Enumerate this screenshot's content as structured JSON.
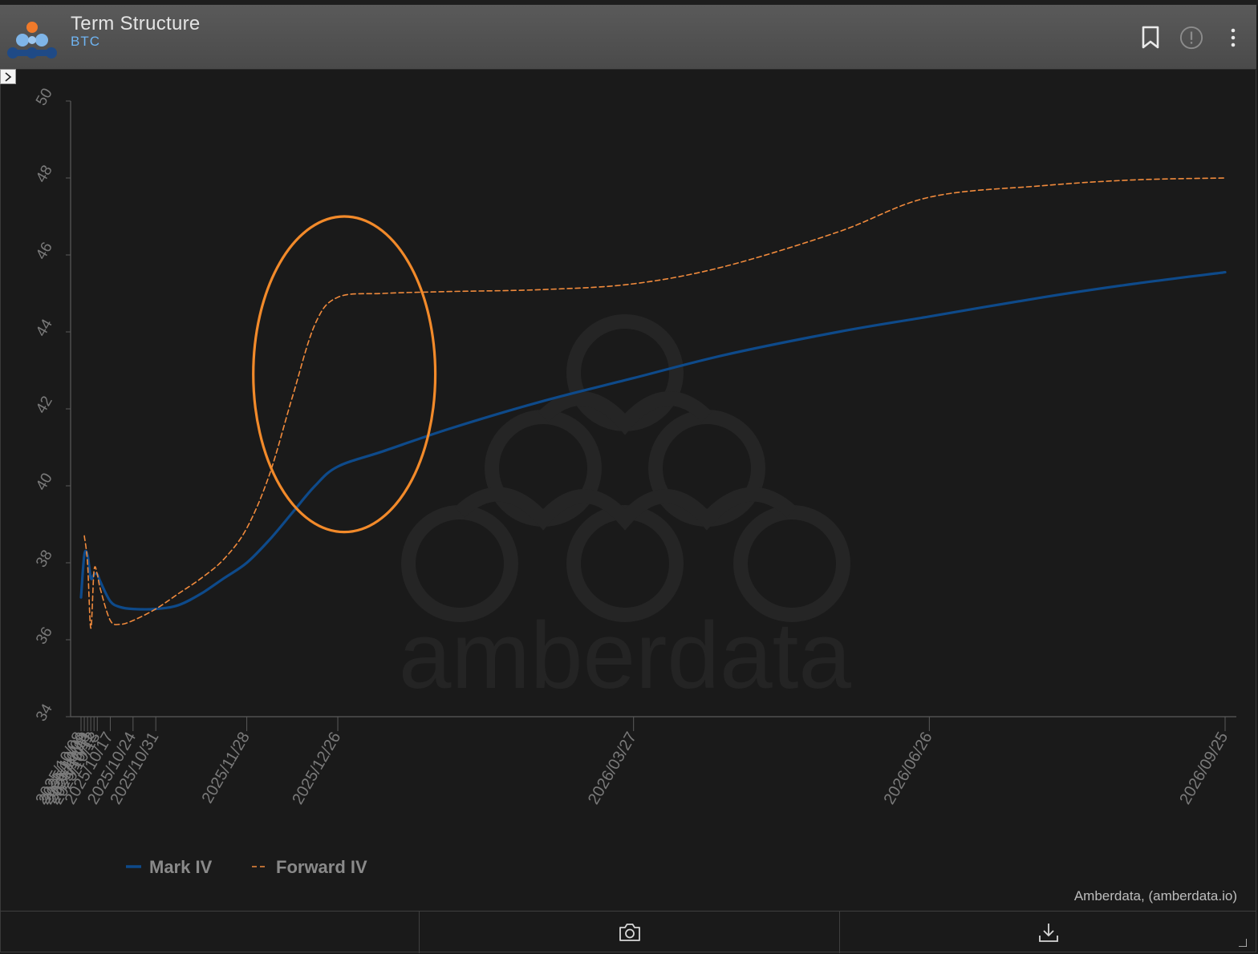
{
  "header": {
    "title": "Term Structure",
    "subtitle": "BTC",
    "icons": [
      "bookmark-icon",
      "info-icon",
      "more-vertical-icon"
    ]
  },
  "watermark": "amberdata",
  "credit": "Amberdata, (amberdata.io)",
  "footer": {
    "icons": [
      "camera-icon",
      "download-icon"
    ]
  },
  "chart_data": {
    "type": "line",
    "title": "",
    "xlabel": "",
    "ylabel": "",
    "ylim": [
      34,
      50
    ],
    "yticks": [
      34,
      36,
      38,
      40,
      42,
      44,
      46,
      48,
      50
    ],
    "xlim": [
      "2025-10-08",
      "2026-09-25"
    ],
    "xticks": [
      "2025/10/17",
      "2025/10/24",
      "2025/10/31",
      "2025/11/28",
      "2025/12/26",
      "2026/03/27",
      "2026/06/26",
      "2026/09/25"
    ],
    "xticks_overlapped": [
      "2025/10/08",
      "2025/10/09",
      "2025/10/10",
      "2025/10/11",
      "2025/10/12",
      "2025/10/13"
    ],
    "grid": false,
    "legend_position": "bottom-left",
    "series": [
      {
        "name": "Mark IV",
        "color": "#0e4a8a",
        "style": "solid",
        "points": [
          [
            "2025-10-08",
            37.1
          ],
          [
            "2025-10-09",
            38.2
          ],
          [
            "2025-10-10",
            38.2
          ],
          [
            "2025-10-11",
            37.6
          ],
          [
            "2025-10-12",
            37.7
          ],
          [
            "2025-10-13",
            37.7
          ],
          [
            "2025-10-14",
            37.5
          ],
          [
            "2025-10-17",
            37.0
          ],
          [
            "2025-10-20",
            36.85
          ],
          [
            "2025-10-24",
            36.8
          ],
          [
            "2025-10-31",
            36.8
          ],
          [
            "2025-11-07",
            36.9
          ],
          [
            "2025-11-14",
            37.2
          ],
          [
            "2025-11-21",
            37.6
          ],
          [
            "2025-11-28",
            38.0
          ],
          [
            "2025-12-05",
            38.6
          ],
          [
            "2025-12-12",
            39.3
          ],
          [
            "2025-12-19",
            40.0
          ],
          [
            "2025-12-26",
            40.5
          ],
          [
            "2026-01-09",
            40.9
          ],
          [
            "2026-01-30",
            41.5
          ],
          [
            "2026-02-27",
            42.2
          ],
          [
            "2026-03-27",
            42.8
          ],
          [
            "2026-04-24",
            43.4
          ],
          [
            "2026-05-29",
            44.0
          ],
          [
            "2026-06-26",
            44.4
          ],
          [
            "2026-07-31",
            44.9
          ],
          [
            "2026-08-28",
            45.25
          ],
          [
            "2026-09-25",
            45.55
          ]
        ]
      },
      {
        "name": "Forward IV",
        "color": "#f08a3c",
        "style": "dashed",
        "points": [
          [
            "2025-10-09",
            38.7
          ],
          [
            "2025-10-10",
            38.0
          ],
          [
            "2025-10-11",
            36.3
          ],
          [
            "2025-10-12",
            37.8
          ],
          [
            "2025-10-13",
            37.7
          ],
          [
            "2025-10-14",
            37.3
          ],
          [
            "2025-10-17",
            36.5
          ],
          [
            "2025-10-20",
            36.4
          ],
          [
            "2025-10-24",
            36.5
          ],
          [
            "2025-10-31",
            36.8
          ],
          [
            "2025-11-07",
            37.2
          ],
          [
            "2025-11-14",
            37.6
          ],
          [
            "2025-11-21",
            38.1
          ],
          [
            "2025-11-28",
            38.9
          ],
          [
            "2025-12-05",
            40.3
          ],
          [
            "2025-12-12",
            42.3
          ],
          [
            "2025-12-19",
            44.2
          ],
          [
            "2025-12-26",
            44.9
          ],
          [
            "2026-01-09",
            45.0
          ],
          [
            "2026-01-30",
            45.05
          ],
          [
            "2026-02-27",
            45.1
          ],
          [
            "2026-03-27",
            45.25
          ],
          [
            "2026-04-24",
            45.7
          ],
          [
            "2026-05-29",
            46.6
          ],
          [
            "2026-06-26",
            47.5
          ],
          [
            "2026-07-31",
            47.8
          ],
          [
            "2026-08-28",
            47.95
          ],
          [
            "2026-09-25",
            48.0
          ]
        ]
      }
    ],
    "annotations": [
      {
        "type": "ellipse",
        "color": "#f28a2a",
        "center": [
          "2025-12-28",
          42.9
        ],
        "x_halfwidth_days": 28,
        "y_halfheight": 4.1
      }
    ]
  }
}
